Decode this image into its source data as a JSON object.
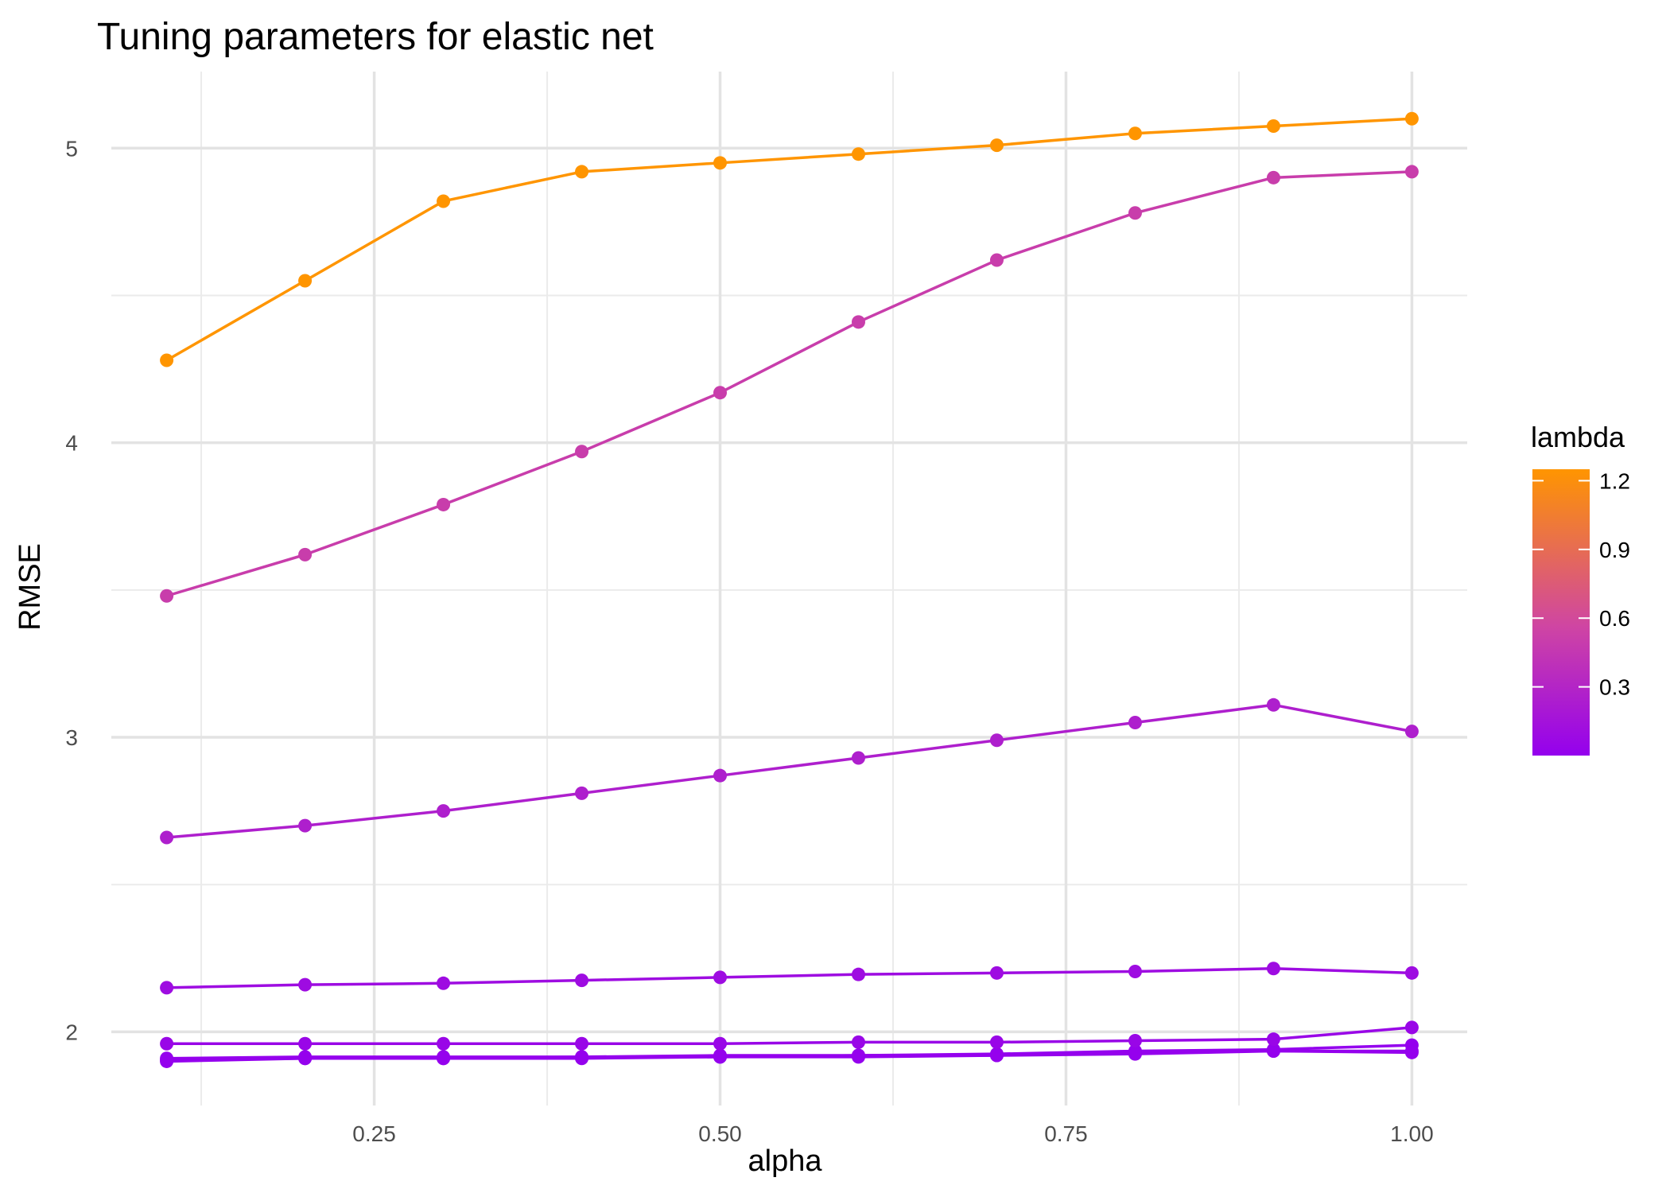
{
  "chart_data": {
    "type": "line",
    "title": "Tuning parameters for elastic net",
    "xlabel": "alpha",
    "ylabel": "RMSE",
    "xlim": [
      0.06,
      1.04
    ],
    "ylim": [
      1.75,
      5.26
    ],
    "x_ticks": [
      0.25,
      0.5,
      0.75,
      1.0
    ],
    "x_tick_labels": [
      "0.25",
      "0.50",
      "0.75",
      "1.00"
    ],
    "x_minor_ticks": [
      0.125,
      0.375,
      0.625,
      0.875
    ],
    "y_ticks": [
      2,
      3,
      4,
      5
    ],
    "y_tick_labels": [
      "2",
      "3",
      "4",
      "5"
    ],
    "y_minor_ticks": [
      2.5,
      3.5,
      4.5
    ],
    "grid": true,
    "x": [
      0.1,
      0.2,
      0.3,
      0.4,
      0.5,
      0.6,
      0.7,
      0.8,
      0.9,
      1.0
    ],
    "series": [
      {
        "lambda": 0.0001,
        "values": [
          1.9,
          1.91,
          1.91,
          1.915,
          1.915,
          1.92,
          1.925,
          1.935,
          1.94,
          1.955
        ]
      },
      {
        "lambda": 0.001,
        "values": [
          1.905,
          1.91,
          1.91,
          1.91,
          1.915,
          1.915,
          1.92,
          1.925,
          1.935,
          1.935
        ]
      },
      {
        "lambda": 0.01,
        "values": [
          1.91,
          1.915,
          1.915,
          1.915,
          1.92,
          1.92,
          1.92,
          1.93,
          1.935,
          1.93
        ]
      },
      {
        "lambda": 0.05,
        "values": [
          1.96,
          1.96,
          1.96,
          1.96,
          1.96,
          1.965,
          1.965,
          1.97,
          1.975,
          2.015
        ]
      },
      {
        "lambda": 0.1,
        "values": [
          2.15,
          2.16,
          2.165,
          2.175,
          2.185,
          2.195,
          2.2,
          2.205,
          2.215,
          2.2
        ]
      },
      {
        "lambda": 0.25,
        "values": [
          2.66,
          2.7,
          2.75,
          2.81,
          2.87,
          2.93,
          2.99,
          3.05,
          3.11,
          3.02
        ]
      },
      {
        "lambda": 0.5,
        "values": [
          3.48,
          3.62,
          3.79,
          3.97,
          4.17,
          4.41,
          4.62,
          4.78,
          4.9,
          4.92
        ]
      },
      {
        "lambda": 1.25,
        "values": [
          4.28,
          4.55,
          4.82,
          4.92,
          4.95,
          4.98,
          5.01,
          5.05,
          5.075,
          5.1
        ]
      }
    ],
    "legend": {
      "title": "lambda",
      "type": "colorbar",
      "position": "right",
      "breaks": [
        0.3,
        0.6,
        0.9,
        1.2
      ],
      "break_labels": [
        "0.3",
        "0.6",
        "0.9",
        "1.2"
      ],
      "range": [
        0.0001,
        1.25
      ],
      "color_low": "#9400ee",
      "color_mid": "#cf45a3",
      "color_high": "#ff9500"
    }
  }
}
